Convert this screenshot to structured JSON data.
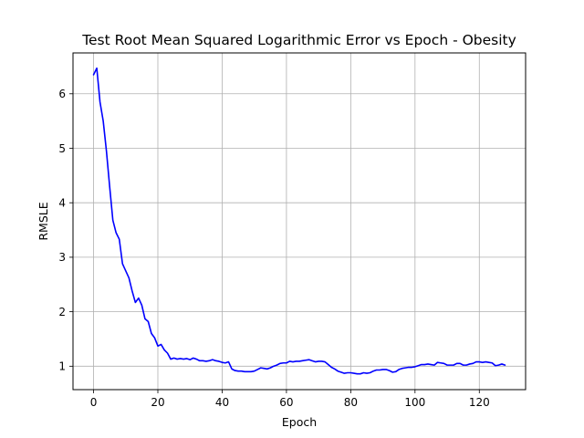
{
  "chart_data": {
    "type": "line",
    "title": "Test Root Mean Squared Logarithmic Error vs Epoch - Obesity",
    "xlabel": "Epoch",
    "ylabel": "RMSLE",
    "xlim": [
      -6.4,
      134.4
    ],
    "ylim": [
      0.57,
      6.75
    ],
    "xticks": [
      0,
      20,
      40,
      60,
      80,
      100,
      120
    ],
    "yticks": [
      1,
      2,
      3,
      4,
      5,
      6
    ],
    "grid": true,
    "series": [
      {
        "color": "#0000ff",
        "x": [
          0,
          1,
          2,
          3,
          4,
          5,
          6,
          7,
          8,
          9,
          10,
          11,
          12,
          13,
          14,
          15,
          16,
          17,
          18,
          19,
          20,
          21,
          22,
          23,
          24,
          25,
          26,
          27,
          28,
          29,
          30,
          31,
          32,
          33,
          34,
          35,
          36,
          37,
          38,
          39,
          40,
          41,
          42,
          43,
          44,
          45,
          46,
          47,
          48,
          49,
          50,
          51,
          52,
          53,
          54,
          55,
          56,
          57,
          58,
          59,
          60,
          61,
          62,
          63,
          64,
          65,
          66,
          67,
          68,
          69,
          70,
          71,
          72,
          73,
          74,
          75,
          76,
          77,
          78,
          79,
          80,
          81,
          82,
          83,
          84,
          85,
          86,
          87,
          88,
          89,
          90,
          91,
          92,
          93,
          94,
          95,
          96,
          97,
          98,
          99,
          100,
          101,
          102,
          103,
          104,
          105,
          106,
          107,
          108,
          109,
          110,
          111,
          112,
          113,
          114,
          115,
          116,
          117,
          118,
          119,
          120,
          121,
          122,
          123,
          124,
          125,
          126,
          127,
          128
        ],
        "y": [
          6.35,
          6.47,
          5.85,
          5.5,
          4.95,
          4.3,
          3.68,
          3.45,
          3.33,
          2.88,
          2.75,
          2.62,
          2.38,
          2.17,
          2.25,
          2.12,
          1.87,
          1.82,
          1.6,
          1.52,
          1.37,
          1.4,
          1.3,
          1.24,
          1.13,
          1.15,
          1.13,
          1.14,
          1.13,
          1.14,
          1.12,
          1.15,
          1.13,
          1.1,
          1.1,
          1.09,
          1.1,
          1.12,
          1.1,
          1.09,
          1.07,
          1.06,
          1.08,
          0.95,
          0.92,
          0.91,
          0.91,
          0.9,
          0.9,
          0.9,
          0.91,
          0.94,
          0.97,
          0.96,
          0.95,
          0.97,
          1.0,
          1.02,
          1.05,
          1.06,
          1.06,
          1.09,
          1.08,
          1.09,
          1.09,
          1.1,
          1.11,
          1.12,
          1.1,
          1.08,
          1.09,
          1.09,
          1.08,
          1.03,
          0.98,
          0.95,
          0.91,
          0.89,
          0.87,
          0.88,
          0.88,
          0.87,
          0.86,
          0.86,
          0.88,
          0.87,
          0.88,
          0.91,
          0.93,
          0.93,
          0.94,
          0.94,
          0.92,
          0.89,
          0.9,
          0.94,
          0.96,
          0.97,
          0.98,
          0.98,
          0.99,
          1.01,
          1.03,
          1.03,
          1.04,
          1.03,
          1.02,
          1.07,
          1.06,
          1.05,
          1.02,
          1.02,
          1.02,
          1.05,
          1.05,
          1.02,
          1.02,
          1.04,
          1.05,
          1.08,
          1.08,
          1.07,
          1.08,
          1.07,
          1.06,
          1.01,
          1.02,
          1.04,
          1.02
        ]
      }
    ]
  }
}
